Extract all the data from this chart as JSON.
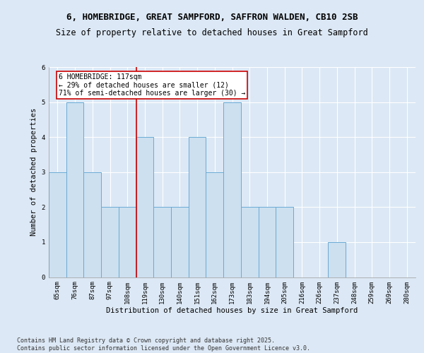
{
  "title1": "6, HOMEBRIDGE, GREAT SAMPFORD, SAFFRON WALDEN, CB10 2SB",
  "title2": "Size of property relative to detached houses in Great Sampford",
  "xlabel": "Distribution of detached houses by size in Great Sampford",
  "ylabel": "Number of detached properties",
  "categories": [
    "65sqm",
    "76sqm",
    "87sqm",
    "97sqm",
    "108sqm",
    "119sqm",
    "130sqm",
    "140sqm",
    "151sqm",
    "162sqm",
    "173sqm",
    "183sqm",
    "194sqm",
    "205sqm",
    "216sqm",
    "226sqm",
    "237sqm",
    "248sqm",
    "259sqm",
    "269sqm",
    "280sqm"
  ],
  "values": [
    3,
    5,
    3,
    2,
    2,
    4,
    2,
    2,
    4,
    3,
    5,
    2,
    2,
    2,
    0,
    0,
    1,
    0,
    0,
    0,
    0
  ],
  "bar_color": "#cce0f0",
  "bar_edge_color": "#6aaad4",
  "highlight_line_idx": 5,
  "highlight_line_color": "#cc0000",
  "annotation_text": "6 HOMEBRIDGE: 117sqm\n← 29% of detached houses are smaller (12)\n71% of semi-detached houses are larger (30) →",
  "annotation_box_color": "#ffffff",
  "annotation_box_edge": "#cc0000",
  "ylim": [
    0,
    6
  ],
  "yticks": [
    0,
    1,
    2,
    3,
    4,
    5,
    6
  ],
  "footer": "Contains HM Land Registry data © Crown copyright and database right 2025.\nContains public sector information licensed under the Open Government Licence v3.0.",
  "background_color": "#dce8f5",
  "plot_bg_color": "#dce8f5",
  "title1_fontsize": 9,
  "title2_fontsize": 8.5,
  "axis_label_fontsize": 7.5,
  "tick_fontsize": 6.5,
  "annotation_fontsize": 7,
  "footer_fontsize": 6
}
